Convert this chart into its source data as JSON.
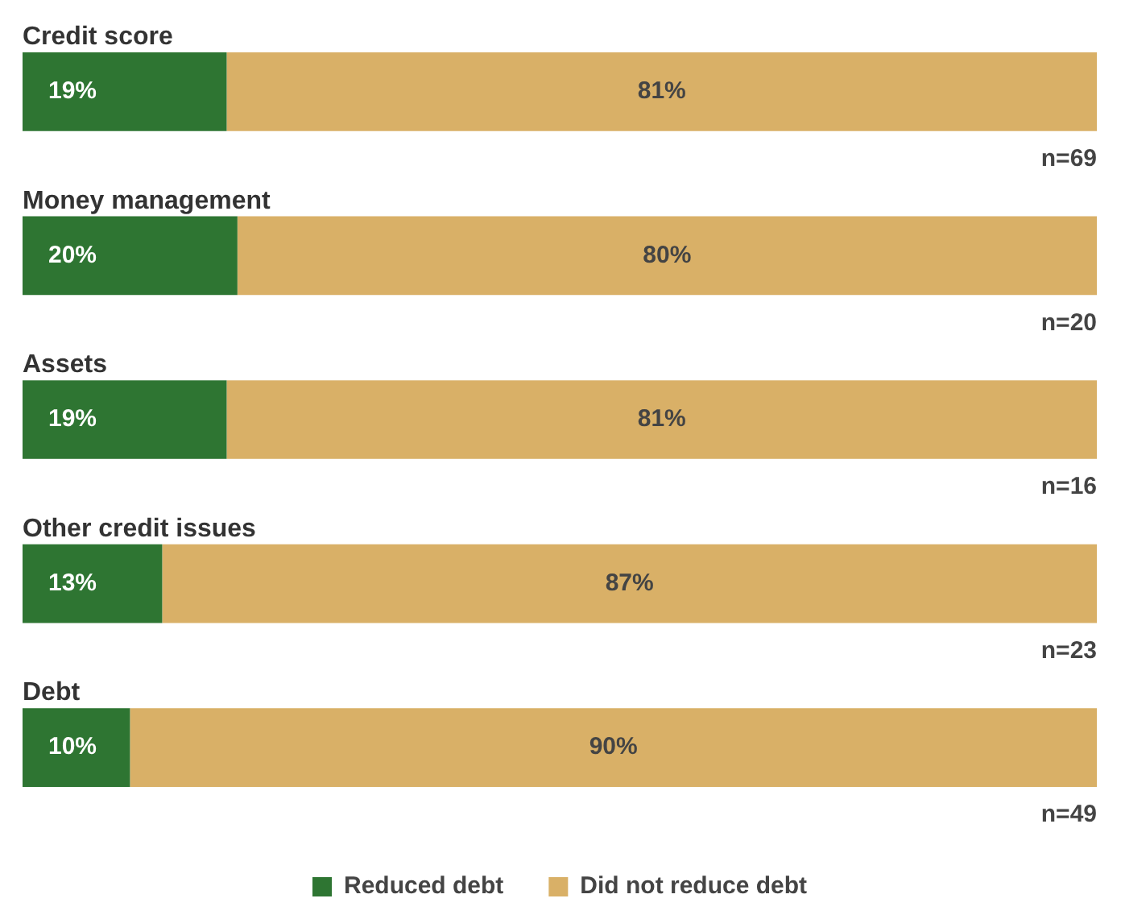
{
  "chart_data": {
    "type": "bar",
    "orientation": "horizontal",
    "stacked": true,
    "categories": [
      "Credit score",
      "Money management",
      "Assets",
      "Other credit issues",
      "Debt"
    ],
    "series": [
      {
        "name": "Reduced debt",
        "color": "#2e7532",
        "values": [
          19,
          20,
          19,
          13,
          10
        ],
        "value_labels": [
          "19%",
          "20%",
          "19%",
          "13%",
          "10%"
        ]
      },
      {
        "name": "Did not reduce debt",
        "color": "#d9b067",
        "values": [
          81,
          80,
          81,
          87,
          90
        ],
        "value_labels": [
          "81%",
          "80%",
          "81%",
          "87%",
          "90%"
        ]
      }
    ],
    "xlim": [
      0,
      100
    ],
    "tick_labels": "y",
    "legend": "bottom",
    "annotations": [
      "n=69",
      "n=20",
      "n=16",
      "n=23",
      "n=49"
    ]
  }
}
